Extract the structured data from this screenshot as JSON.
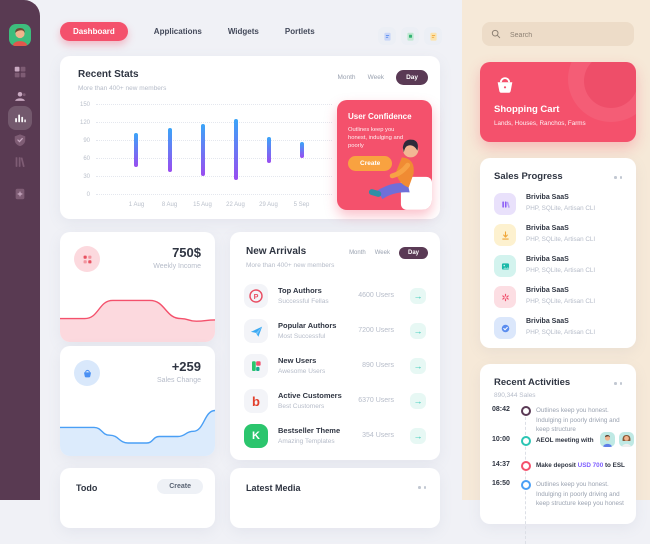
{
  "colors": {
    "primary": "#f4516c",
    "sidebar": "#593a52",
    "orange": "#f9a240",
    "teal": "#2bc5b4",
    "blue": "#4a9ff5",
    "violet": "#7c5cff",
    "rightbar_bg": "#f6e9d8"
  },
  "sidebar": {
    "items": [
      {
        "icon": "dashboard-grid-icon",
        "active": false
      },
      {
        "icon": "users-icon",
        "active": false
      },
      {
        "icon": "bar-chart-icon",
        "active": true
      },
      {
        "icon": "shield-check-icon",
        "active": false
      },
      {
        "icon": "library-icon",
        "active": false
      },
      {
        "icon": "file-add-icon",
        "active": false
      }
    ]
  },
  "topnav": {
    "tabs": [
      {
        "label": "Dashboard",
        "active": true
      },
      {
        "label": "Applications",
        "active": false
      },
      {
        "label": "Widgets",
        "active": false
      },
      {
        "label": "Portlets",
        "active": false
      }
    ],
    "actions": [
      "notes-blue-icon",
      "journal-green-icon",
      "sticky-yellow-icon"
    ]
  },
  "recent_stats": {
    "title": "Recent Stats",
    "subtitle": "More than 400+ new members",
    "periods": [
      "Month",
      "Week",
      "Day"
    ],
    "active_period": "Day",
    "chart_data": {
      "type": "bar",
      "variant": "floating-range-bars",
      "categories": [
        "1 Aug",
        "8 Aug",
        "15 Aug",
        "22 Aug",
        "29 Aug",
        "5 Sep"
      ],
      "bar_ranges": [
        [
          47,
          103
        ],
        [
          39,
          111
        ],
        [
          32,
          118
        ],
        [
          25,
          126
        ],
        [
          53,
          97
        ],
        [
          61,
          89
        ]
      ],
      "ylim": [
        0,
        150
      ],
      "yticks": [
        0,
        30,
        60,
        90,
        120,
        150
      ],
      "bar_gradient_top": "#3aa5f8",
      "bar_gradient_bottom": "#9a4cf0",
      "grid": "dotted-horizontal",
      "legend": "none"
    }
  },
  "user_confidence": {
    "title": "User Confidence",
    "text": "Outlines keep you honest, indulging and poorly",
    "button": "Create"
  },
  "weekly_income": {
    "value": "750$",
    "label": "Weekly Income",
    "chart_data": {
      "type": "area",
      "color": "#f4516c",
      "fill": "#fcd9de",
      "points": [
        [
          0,
          22
        ],
        [
          16,
          22
        ],
        [
          34,
          8
        ],
        [
          58,
          8
        ],
        [
          78,
          22
        ],
        [
          88,
          24
        ],
        [
          100,
          23
        ]
      ]
    }
  },
  "sales_change": {
    "value": "+259",
    "label": "Sales Change",
    "chart_data": {
      "type": "area",
      "color": "#4a9ff5",
      "fill": "#dcebfc",
      "points": [
        [
          0,
          18
        ],
        [
          22,
          18
        ],
        [
          32,
          24
        ],
        [
          44,
          30
        ],
        [
          56,
          30
        ],
        [
          64,
          25
        ],
        [
          76,
          25
        ],
        [
          86,
          21
        ],
        [
          100,
          5
        ]
      ]
    }
  },
  "new_arrivals": {
    "title": "New Arrivals",
    "subtitle": "More than 400+ new members",
    "periods": [
      "Month",
      "Week",
      "Day"
    ],
    "active_period": "Day",
    "items": [
      {
        "icon": "producthunt-icon",
        "icon_letter": "P",
        "name": "Top Authors",
        "desc": "Successful Fellas",
        "users": "4600 Users"
      },
      {
        "icon": "paper-plane-icon",
        "icon_letter": "",
        "name": "Popular Authors",
        "desc": "Most Successful",
        "users": "7200 Users"
      },
      {
        "icon": "blocks-icon",
        "icon_letter": "",
        "name": "New Users",
        "desc": "Awesome Users",
        "users": "890 Users"
      },
      {
        "icon": "letter-b-icon",
        "icon_letter": "b",
        "name": "Active Customers",
        "desc": "Best Customers",
        "users": "6370 Users"
      },
      {
        "icon": "letter-k-icon",
        "icon_letter": "K",
        "name": "Bestseller Theme",
        "desc": "Amazing Templates",
        "users": "354 Users"
      }
    ]
  },
  "todo": {
    "title": "Todo",
    "button": "Create"
  },
  "latest_media": {
    "title": "Latest Media"
  },
  "right": {
    "search": {
      "placeholder": "Search"
    },
    "shopping_cart": {
      "title": "Shopping Cart",
      "subtitle": "Lands, Houses, Ranchos, Farms"
    },
    "sales_progress": {
      "title": "Sales Progress",
      "items": [
        {
          "icon": "bars-purple-icon",
          "name": "Briviba SaaS",
          "desc": "PHP, SQLite, Artisan CLI"
        },
        {
          "icon": "download-amber-icon",
          "name": "Briviba SaaS",
          "desc": "PHP, SQLite, Artisan CLI"
        },
        {
          "icon": "image-teal-icon",
          "name": "Briviba SaaS",
          "desc": "PHP, SQLite, Artisan CLI"
        },
        {
          "icon": "burst-pink-icon",
          "name": "Briviba SaaS",
          "desc": "PHP, SQLite, Artisan CLI"
        },
        {
          "icon": "check-blue-icon",
          "name": "Briviba SaaS",
          "desc": "PHP, SQLite, Artisan CLI"
        }
      ]
    },
    "recent_activities": {
      "title": "Recent Activities",
      "subtitle": "890,344 Sales",
      "items": [
        {
          "time": "08:42",
          "color": "#5a3a55",
          "text": "Outlines keep you honest. Indulging in poorly driving and keep structure"
        },
        {
          "time": "10:00",
          "color": "#2bc5b4",
          "text": "AEOL meeting with",
          "avatars": [
            "man-avatar",
            "woman-avatar"
          ]
        },
        {
          "time": "14:37",
          "color": "#f4516c",
          "text_before": "Make deposit ",
          "highlight": "USD 700",
          "text_after": " to ESL"
        },
        {
          "time": "16:50",
          "color": "#4a9ff5",
          "text": "Outlines keep you honest. Indulging in poorly driving and keep structure keep you honest"
        }
      ]
    }
  }
}
